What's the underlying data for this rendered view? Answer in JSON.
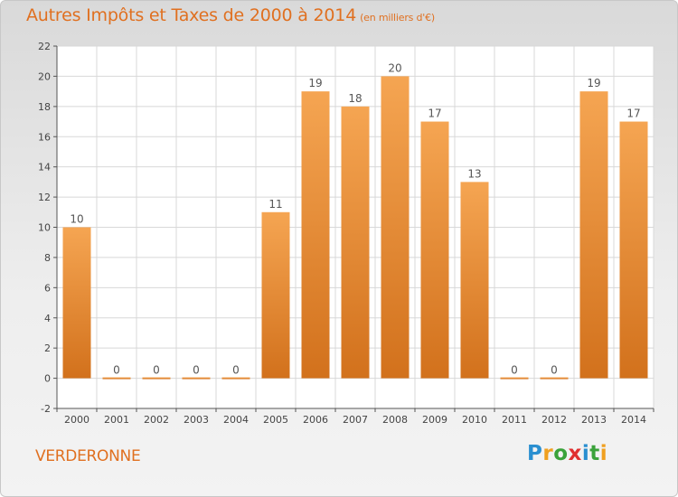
{
  "title": {
    "main": "Autres Impôts et Taxes de 2000 à 2014",
    "unit": "(en milliers d'€)"
  },
  "commune": "VERDERONNE",
  "logo": {
    "letters": [
      "P",
      "r",
      "o",
      "x",
      "i",
      "t",
      "i"
    ],
    "colors": [
      "#2a8fd0",
      "#f0a020",
      "#3aa23a",
      "#e03030",
      "#2a8fd0",
      "#3aa23a",
      "#f0a020"
    ]
  },
  "chart_data": {
    "type": "bar",
    "categories": [
      "2000",
      "2001",
      "2002",
      "2003",
      "2004",
      "2005",
      "2006",
      "2007",
      "2008",
      "2009",
      "2010",
      "2011",
      "2012",
      "2013",
      "2014"
    ],
    "values": [
      10,
      0,
      0,
      0,
      0,
      11,
      19,
      18,
      20,
      17,
      13,
      0,
      0,
      19,
      17
    ],
    "data_labels": [
      "10",
      "0",
      "0",
      "0",
      "0",
      "11",
      "19",
      "18",
      "20",
      "17",
      "13",
      "0",
      "0",
      "19",
      "17"
    ],
    "ylim": [
      -2,
      22
    ],
    "yticks": [
      -2,
      0,
      2,
      4,
      6,
      8,
      10,
      12,
      14,
      16,
      18,
      20,
      22
    ],
    "grid": true,
    "colors": {
      "bar_top": "#f5a552",
      "bar_bottom": "#d2711c",
      "grid": "#d8d8d8",
      "axis": "#555555"
    }
  }
}
